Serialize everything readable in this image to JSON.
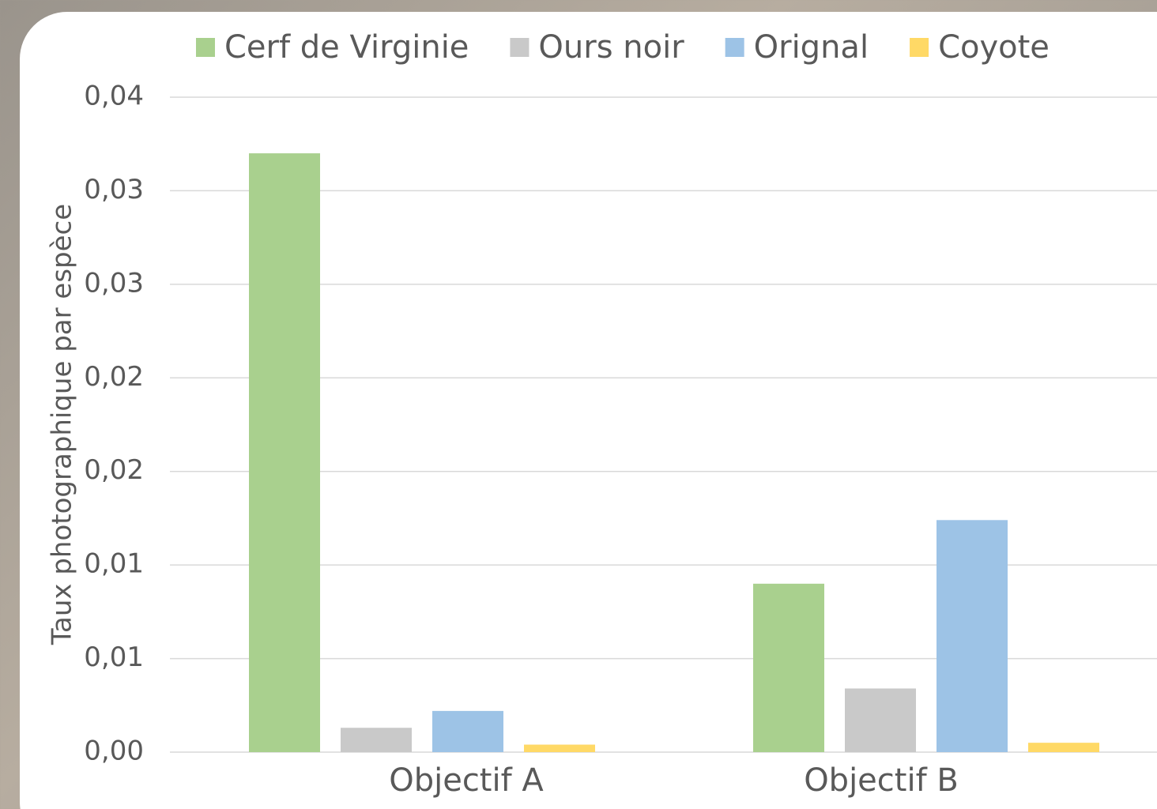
{
  "chart_data": {
    "type": "bar",
    "y_label": "Taux photographique par espèce",
    "categories": [
      "Objectif A",
      "Objectif B"
    ],
    "series": [
      {
        "name": "Cerf de Virginie",
        "color": "#a9d08e",
        "values": [
          0.032,
          0.009
        ]
      },
      {
        "name": "Ours noir",
        "color": "#c9c9c9",
        "values": [
          0.0013,
          0.0034
        ]
      },
      {
        "name": "Orignal",
        "color": "#9dc3e6",
        "values": [
          0.0022,
          0.0124
        ]
      },
      {
        "name": "Coyote",
        "color": "#ffd966",
        "values": [
          0.0004,
          0.0005
        ]
      }
    ],
    "ylim": [
      0,
      0.035
    ],
    "yticks": [
      {
        "value": 0,
        "label": "0,00"
      },
      {
        "value": 0.005,
        "label": "0,01"
      },
      {
        "value": 0.01,
        "label": "0,01"
      },
      {
        "value": 0.015,
        "label": "0,02"
      },
      {
        "value": 0.02,
        "label": "0,02"
      },
      {
        "value": 0.025,
        "label": "0,03"
      },
      {
        "value": 0.03,
        "label": "0,03"
      },
      {
        "value": 0.035,
        "label": "0,04"
      }
    ],
    "grid": true,
    "legend": "top"
  }
}
